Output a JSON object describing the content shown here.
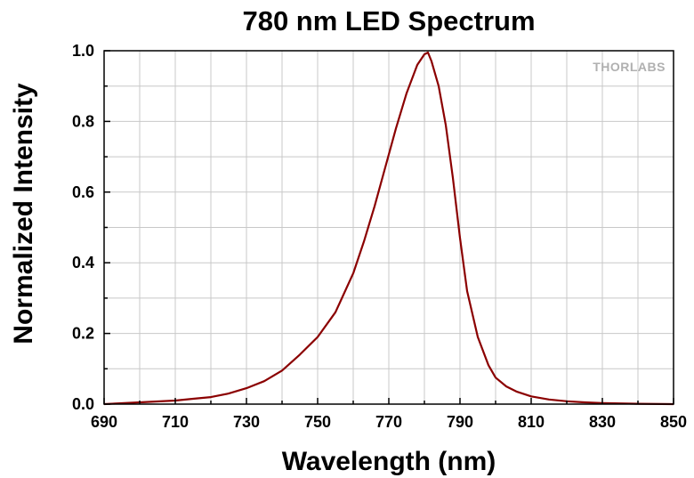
{
  "logo_text": "THORLABS",
  "chart_data": {
    "type": "line",
    "title": "780 nm LED Spectrum",
    "xlabel": "Wavelength (nm)",
    "ylabel": "Normalized Intensity",
    "xlim": [
      690,
      850
    ],
    "ylim": [
      0,
      1.0
    ],
    "x_ticks": [
      690,
      710,
      730,
      750,
      770,
      790,
      810,
      830,
      850
    ],
    "x_tick_labels": [
      "690",
      "710",
      "730",
      "750",
      "770",
      "790",
      "810",
      "830",
      "850"
    ],
    "y_ticks": [
      0,
      0.2,
      0.4,
      0.6,
      0.8,
      1.0
    ],
    "y_tick_labels": [
      "0.0",
      "0.2",
      "0.4",
      "0.6",
      "0.8",
      "1.0"
    ],
    "grid": true,
    "series": [
      {
        "color": "#8b0000",
        "x": [
          690,
          700,
          710,
          715,
          720,
          725,
          730,
          735,
          740,
          745,
          750,
          755,
          760,
          763,
          766,
          769,
          772,
          775,
          778,
          780,
          781,
          782,
          784,
          786,
          788,
          790,
          792,
          795,
          798,
          800,
          803,
          806,
          810,
          815,
          820,
          825,
          830,
          835,
          840,
          850
        ],
        "y": [
          0.0,
          0.005,
          0.01,
          0.015,
          0.02,
          0.03,
          0.045,
          0.065,
          0.095,
          0.14,
          0.19,
          0.26,
          0.37,
          0.46,
          0.56,
          0.67,
          0.78,
          0.88,
          0.96,
          0.99,
          0.995,
          0.97,
          0.9,
          0.79,
          0.64,
          0.47,
          0.32,
          0.19,
          0.11,
          0.075,
          0.05,
          0.035,
          0.022,
          0.013,
          0.008,
          0.005,
          0.003,
          0.002,
          0.001,
          0.0
        ]
      }
    ]
  }
}
